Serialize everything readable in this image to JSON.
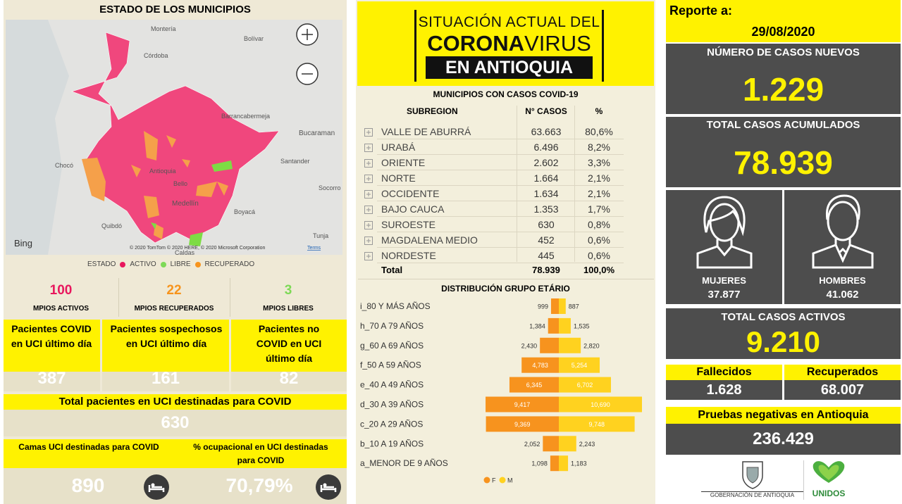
{
  "left": {
    "title": "ESTADO DE LOS MUNICIPIOS",
    "map": {
      "labels": [
        "Montería",
        "Córdoba",
        "Bolívar",
        "Barrancabermeja",
        "Bucaraman",
        "Chocó",
        "Santander",
        "Socorro",
        "Antioquia",
        "Bello",
        "Medellín",
        "Boyacá",
        "Quibdó",
        "Tunja",
        "Caldas"
      ],
      "logo": "Bing",
      "attribution": "© 2020 TomTom © 2020 HERE, © 2020 Microsoft Corporation",
      "terms": "Terms"
    },
    "legend": {
      "title": "ESTADO",
      "items": [
        "ACTIVO",
        "LIBRE",
        "RECUPERADO"
      ]
    },
    "counts": [
      {
        "value": "100",
        "label": "MPIOS ACTIVOS"
      },
      {
        "value": "22",
        "label": "MPIOS RECUPERADOS"
      },
      {
        "value": "3",
        "label": "MPIOS LIBRES"
      }
    ],
    "uci": [
      {
        "label": "Pacientes COVID en UCI último día",
        "value": "387"
      },
      {
        "label": "Pacientes sospechosos en UCI último día",
        "value": "161"
      },
      {
        "label": "Pacientes no COVID en UCI último día",
        "value": "82"
      }
    ],
    "uci_total": {
      "label": "Total pacientes en UCI destinadas para COVID",
      "value": "630"
    },
    "beds": {
      "label": "Camas UCI destinadas para COVID",
      "value": "890"
    },
    "occupancy": {
      "label": "% ocupacional en UCI destinadas para COVID",
      "value": "70,79%"
    }
  },
  "middle": {
    "banner": {
      "line1": "SITUACIÓN ACTUAL DEL",
      "bold": "CORONA",
      "light": "VIRUS",
      "line3": "EN ANTIOQUIA"
    },
    "table": {
      "title": "MUNICIPIOS CON CASOS COVID-19",
      "header": [
        "SUBREGION",
        "N° CASOS",
        "%"
      ],
      "rows": [
        [
          "VALLE DE ABURRÁ",
          "63.663",
          "80,6%"
        ],
        [
          "URABÁ",
          "6.496",
          "8,2%"
        ],
        [
          "ORIENTE",
          "2.602",
          "3,3%"
        ],
        [
          "NORTE",
          "1.664",
          "2,1%"
        ],
        [
          "OCCIDENTE",
          "1.634",
          "2,1%"
        ],
        [
          "BAJO CAUCA",
          "1.353",
          "1,7%"
        ],
        [
          "SUROESTE",
          "630",
          "0,8%"
        ],
        [
          "MAGDALENA MEDIO",
          "452",
          "0,6%"
        ],
        [
          "NORDESTE",
          "445",
          "0,6%"
        ]
      ],
      "total": [
        "Total",
        "78.939",
        "100,0%"
      ]
    },
    "age_chart": {
      "type": "bar",
      "title": "DISTRIBUCIÓN GRUPO ETÁRIO",
      "categories": [
        "i_80 Y MÁS AÑOS",
        "h_70 A 79 AÑOS",
        "g_60 A 69 AÑOS",
        "f_50 A 59 AÑOS",
        "e_40 A 49 AÑOS",
        "d_30 A 39 AÑOS",
        "c_20 A 29 AÑOS",
        "b_10 A 19 AÑOS",
        "a_MENOR DE 9 AÑOS"
      ],
      "series": [
        {
          "name": "F",
          "color": "#f7931e",
          "values": [
            999,
            1384,
            2430,
            4783,
            6345,
            9417,
            9369,
            2052,
            1098
          ],
          "value_labels": [
            "999",
            "1,384",
            "2,430",
            "4,783",
            "6,345",
            "9,417",
            "9,369",
            "2,052",
            "1,098"
          ]
        },
        {
          "name": "M",
          "color": "#ffd21f",
          "values": [
            887,
            1535,
            2820,
            5254,
            6702,
            10690,
            9748,
            2243,
            1183
          ],
          "value_labels": [
            "887",
            "1,535",
            "2,820",
            "5,254",
            "6,702",
            "10,690",
            "9,748",
            "2,243",
            "1,183"
          ]
        }
      ]
    }
  },
  "right": {
    "report_label": "Reporte a:",
    "report_date": "29/08/2020",
    "new_cases": {
      "label": "NÚMERO DE CASOS NUEVOS",
      "value": "1.229"
    },
    "total_cases": {
      "label": "TOTAL CASOS ACUMULADOS",
      "value": "78.939"
    },
    "women": {
      "label": "MUJERES",
      "value": "37.877"
    },
    "men": {
      "label": "HOMBRES",
      "value": "41.062"
    },
    "active": {
      "label": "TOTAL CASOS ACTIVOS",
      "value": "9.210"
    },
    "deaths": {
      "label": "Fallecidos",
      "value": "1.628"
    },
    "recovered": {
      "label": "Recuperados",
      "value": "68.007"
    },
    "negative_tests": {
      "label": "Pruebas negativas en Antioquia",
      "value": "236.429"
    },
    "logos": [
      "GOBERNACIÓN DE ANTIOQUIA",
      "UNIDOS"
    ]
  }
}
